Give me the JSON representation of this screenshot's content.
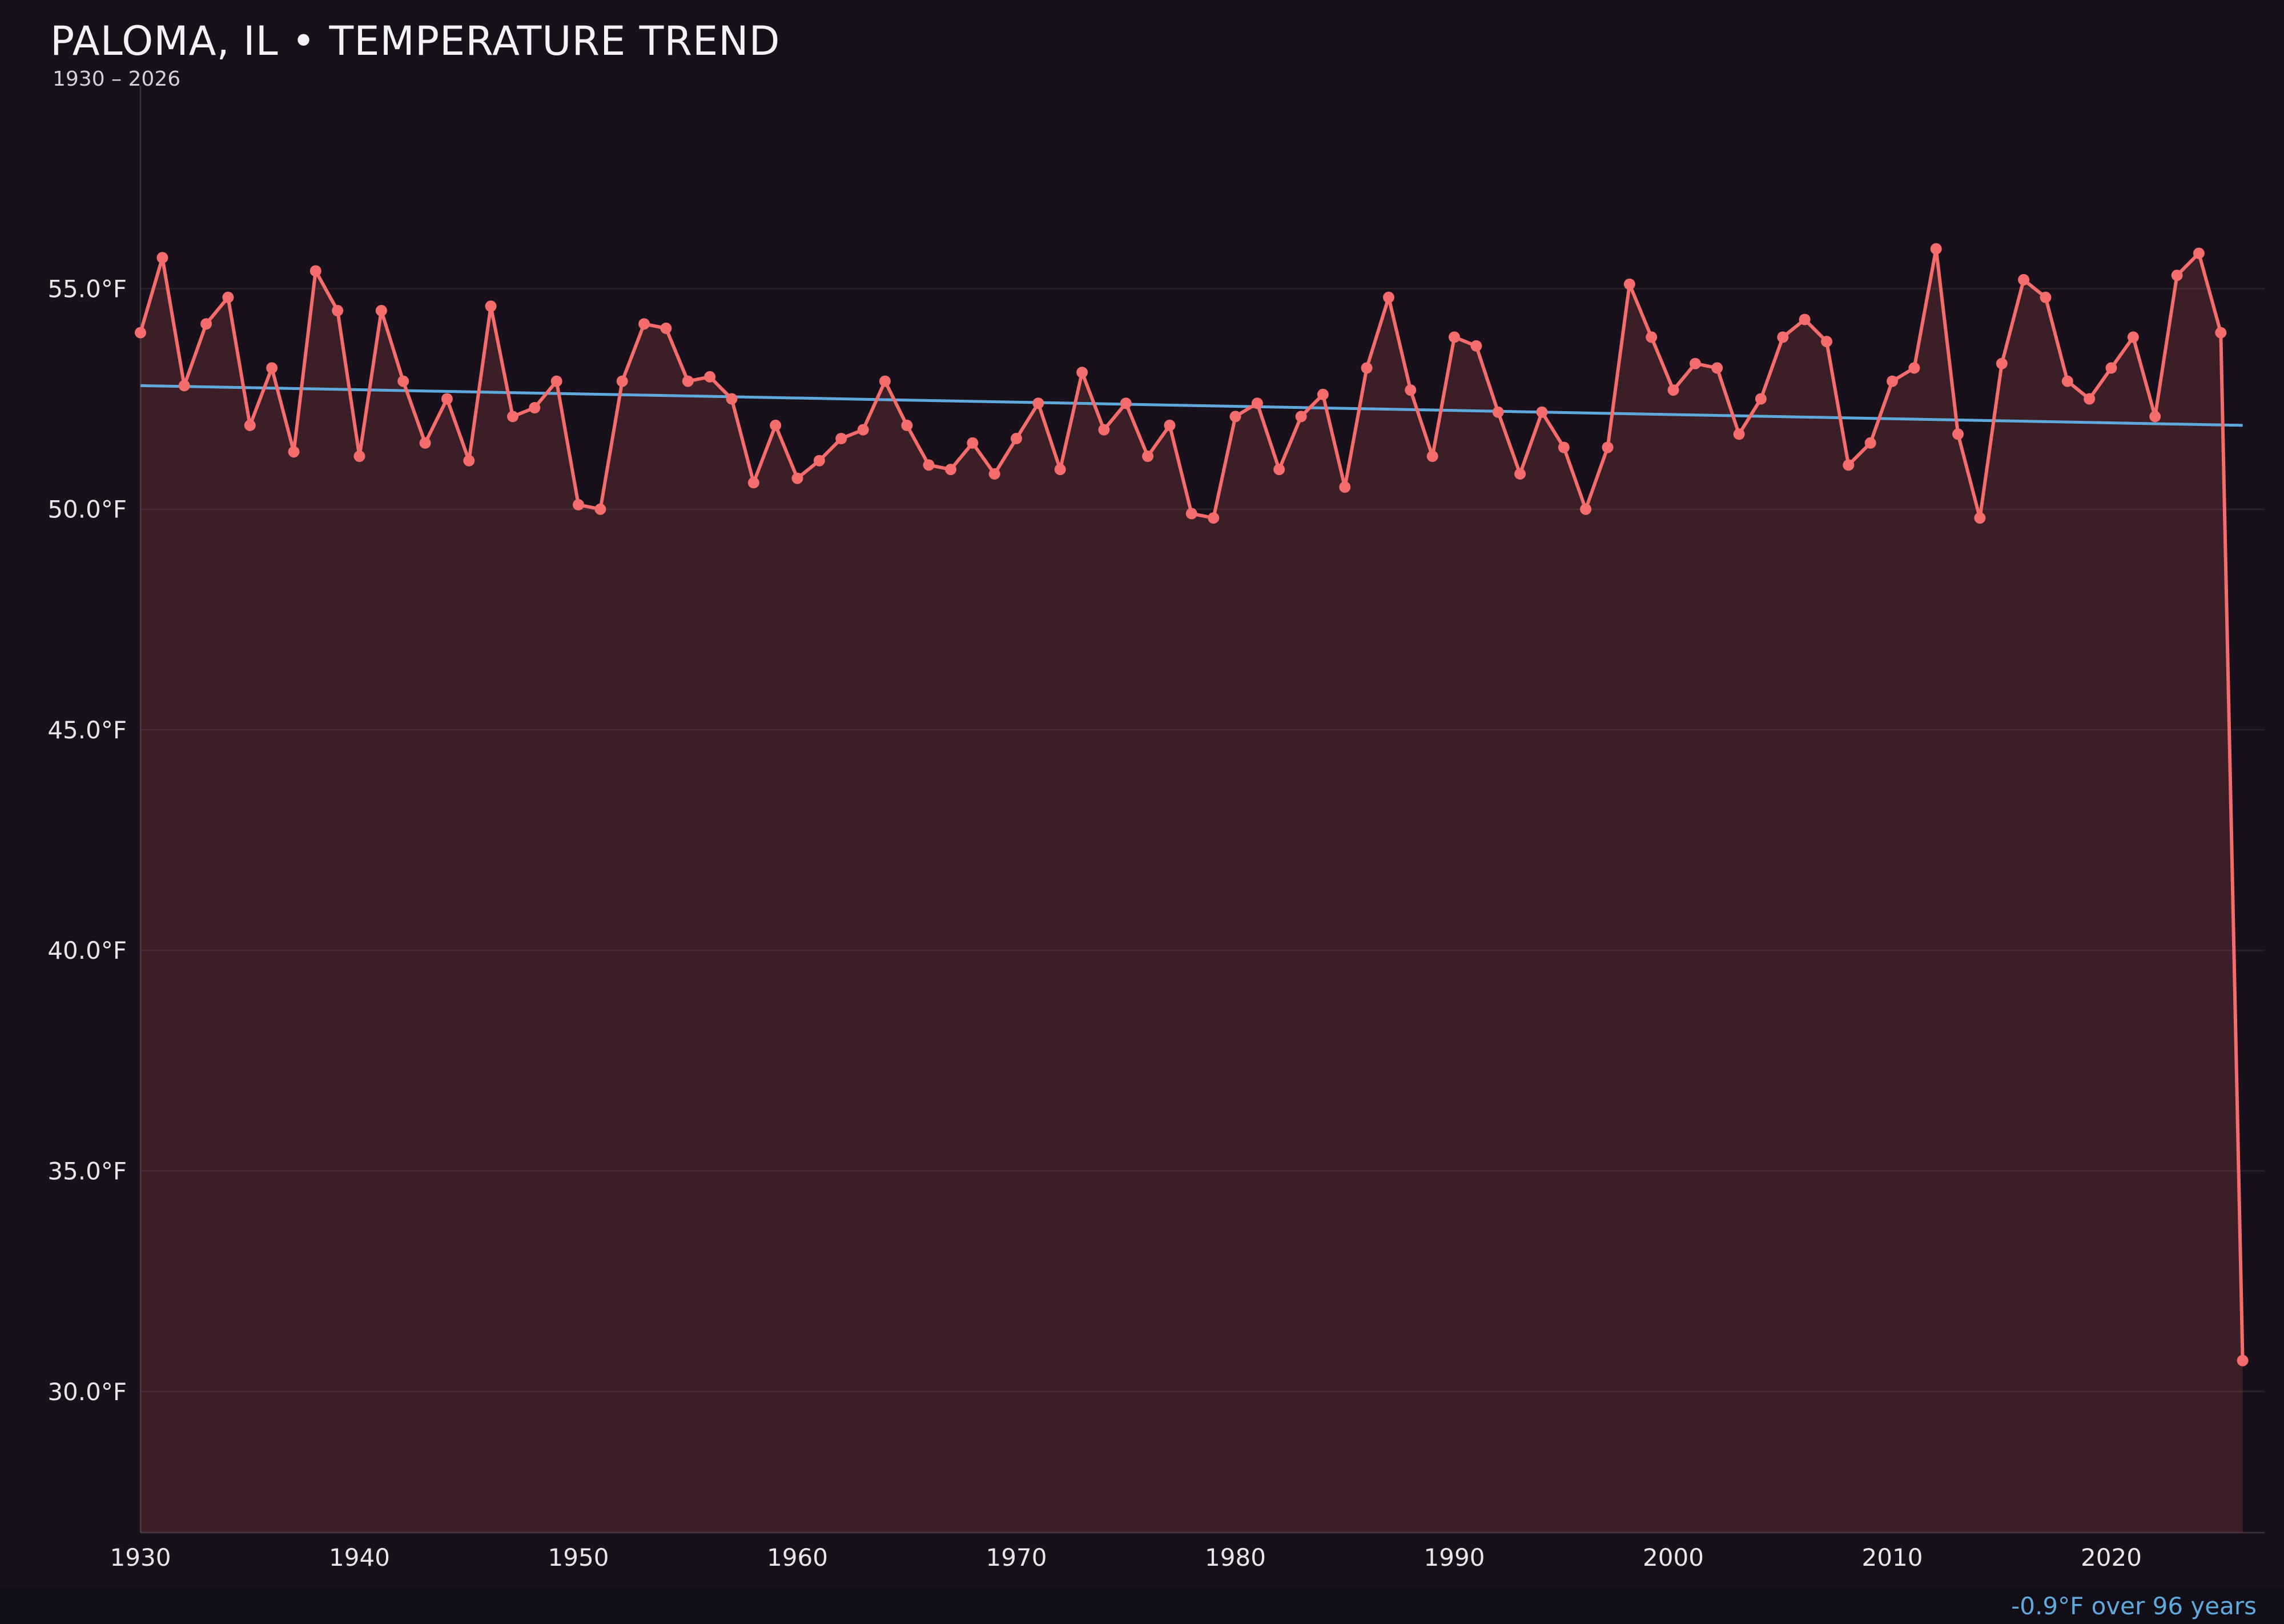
{
  "colors": {
    "background": "#18101a",
    "footer_background": "#110e18",
    "series_line": "#f46c6c",
    "area_fill": "rgba(244,108,108,0.16)",
    "trend_line": "#5fa9dd",
    "grid": "rgba(255,255,255,0.08)",
    "axis": "rgba(255,255,255,0.15)",
    "tick_text": "#e8e6ea",
    "title_text": "#f4f2f6",
    "subtitle_text": "#d4d0d8"
  },
  "chart_data": {
    "type": "line",
    "title": "PALOMA, IL • TEMPERATURE TREND",
    "subtitle": "1930 – 2026",
    "xlabel": "",
    "ylabel": "",
    "legend": "none",
    "grid": "horizontal",
    "x_range": [
      1930,
      2027
    ],
    "y_range": [
      26.8,
      59.6
    ],
    "x_ticks": [
      {
        "value": 1930,
        "label": "1930"
      },
      {
        "value": 1940,
        "label": "1940"
      },
      {
        "value": 1950,
        "label": "1950"
      },
      {
        "value": 1960,
        "label": "1960"
      },
      {
        "value": 1970,
        "label": "1970"
      },
      {
        "value": 1980,
        "label": "1980"
      },
      {
        "value": 1990,
        "label": "1990"
      },
      {
        "value": 2000,
        "label": "2000"
      },
      {
        "value": 2010,
        "label": "2010"
      },
      {
        "value": 2020,
        "label": "2020"
      }
    ],
    "y_ticks": [
      {
        "value": 30,
        "label": "30.0°F"
      },
      {
        "value": 35,
        "label": "35.0°F"
      },
      {
        "value": 40,
        "label": "40.0°F"
      },
      {
        "value": 45,
        "label": "45.0°F"
      },
      {
        "value": 50,
        "label": "50.0°F"
      },
      {
        "value": 55,
        "label": "55.0°F"
      }
    ],
    "years": [
      1930,
      1931,
      1932,
      1933,
      1934,
      1935,
      1936,
      1937,
      1938,
      1939,
      1940,
      1941,
      1942,
      1943,
      1944,
      1945,
      1946,
      1947,
      1948,
      1949,
      1950,
      1951,
      1952,
      1953,
      1954,
      1955,
      1956,
      1957,
      1958,
      1959,
      1960,
      1961,
      1962,
      1963,
      1964,
      1965,
      1966,
      1967,
      1968,
      1969,
      1970,
      1971,
      1972,
      1973,
      1974,
      1975,
      1976,
      1977,
      1978,
      1979,
      1980,
      1981,
      1982,
      1983,
      1984,
      1985,
      1986,
      1987,
      1988,
      1989,
      1990,
      1991,
      1992,
      1993,
      1994,
      1995,
      1996,
      1997,
      1998,
      1999,
      2000,
      2001,
      2002,
      2003,
      2004,
      2005,
      2006,
      2007,
      2008,
      2009,
      2010,
      2011,
      2012,
      2013,
      2014,
      2015,
      2016,
      2017,
      2018,
      2019,
      2020,
      2021,
      2022,
      2023,
      2024,
      2025,
      2026
    ],
    "series": [
      {
        "name": "temperature",
        "unit": "°F",
        "values": [
          54.0,
          55.7,
          52.8,
          54.2,
          54.8,
          51.9,
          53.2,
          51.3,
          55.4,
          54.5,
          51.2,
          54.5,
          52.9,
          51.5,
          52.5,
          51.1,
          54.6,
          52.1,
          52.3,
          52.9,
          50.1,
          50.0,
          52.9,
          54.2,
          54.1,
          52.9,
          53.0,
          52.5,
          50.6,
          51.9,
          50.7,
          51.1,
          51.6,
          51.8,
          52.9,
          51.9,
          51.0,
          50.9,
          51.5,
          50.8,
          51.6,
          52.4,
          50.9,
          53.1,
          51.8,
          52.4,
          51.2,
          51.9,
          49.9,
          49.8,
          52.1,
          52.4,
          50.9,
          52.1,
          52.6,
          50.5,
          53.2,
          54.8,
          52.7,
          51.2,
          53.9,
          53.7,
          52.2,
          50.8,
          52.2,
          51.4,
          50.0,
          51.4,
          55.1,
          53.9,
          52.7,
          53.3,
          53.2,
          51.7,
          52.5,
          53.9,
          54.3,
          53.8,
          51.0,
          51.5,
          52.9,
          53.2,
          55.9,
          51.7,
          49.8,
          53.3,
          55.2,
          54.8,
          52.9,
          52.5,
          53.2,
          53.9,
          52.1,
          55.3,
          55.8,
          54.0,
          30.7
        ]
      }
    ],
    "trendline": {
      "x_start": 1930,
      "y_start": 52.8,
      "x_end": 2026,
      "y_end": 51.9,
      "change": "-0.9°F",
      "span_years": 96,
      "label": "-0.9°F over 96 years"
    }
  }
}
